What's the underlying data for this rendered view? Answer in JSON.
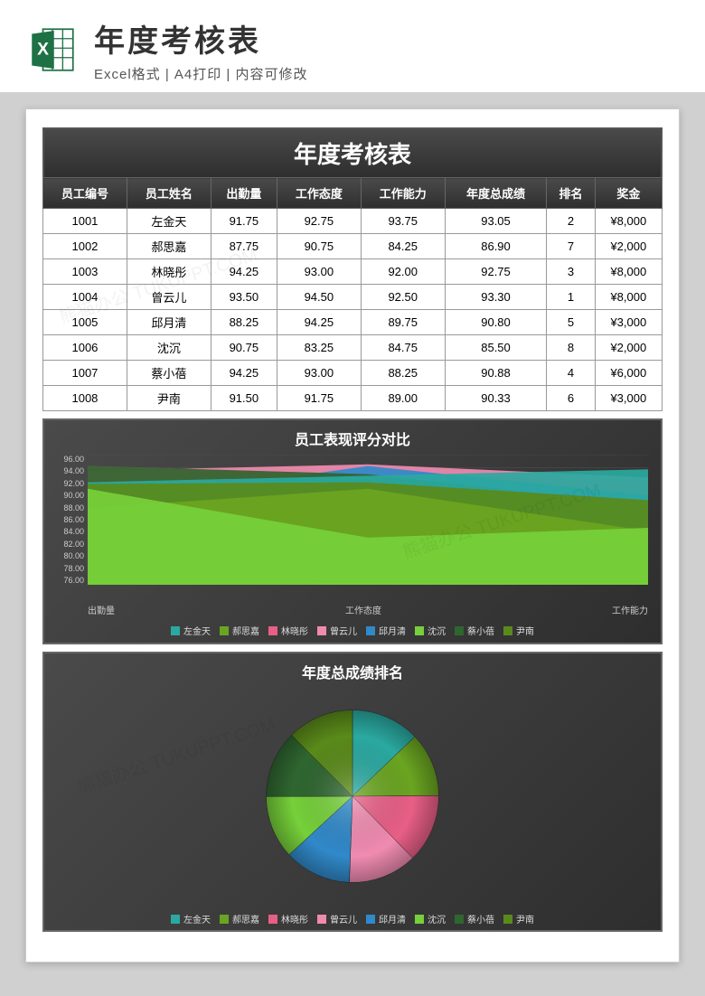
{
  "header": {
    "title": "年度考核表",
    "subtitle": "Excel格式 | A4打印 | 内容可修改"
  },
  "report_title": "年度考核表",
  "table": {
    "columns": [
      "员工编号",
      "员工姓名",
      "出勤量",
      "工作态度",
      "工作能力",
      "年度总成绩",
      "排名",
      "奖金"
    ],
    "rows": [
      [
        "1001",
        "左金天",
        "91.75",
        "92.75",
        "93.75",
        "93.05",
        "2",
        "¥8,000"
      ],
      [
        "1002",
        "郝思嘉",
        "87.75",
        "90.75",
        "84.25",
        "86.90",
        "7",
        "¥2,000"
      ],
      [
        "1003",
        "林晓彤",
        "94.25",
        "93.00",
        "92.00",
        "92.75",
        "3",
        "¥8,000"
      ],
      [
        "1004",
        "曾云儿",
        "93.50",
        "94.50",
        "92.50",
        "93.30",
        "1",
        "¥8,000"
      ],
      [
        "1005",
        "邱月清",
        "88.25",
        "94.25",
        "89.75",
        "90.80",
        "5",
        "¥3,000"
      ],
      [
        "1006",
        "沈沉",
        "90.75",
        "83.25",
        "84.75",
        "85.50",
        "8",
        "¥2,000"
      ],
      [
        "1007",
        "蔡小蓓",
        "94.25",
        "93.00",
        "88.25",
        "90.88",
        "4",
        "¥6,000"
      ],
      [
        "1008",
        "尹南",
        "91.50",
        "91.75",
        "89.00",
        "90.33",
        "6",
        "¥3,000"
      ]
    ]
  },
  "area_chart": {
    "title": "员工表现评分对比",
    "x_labels": [
      "出勤量",
      "工作态度",
      "工作能力"
    ],
    "y_min": 76,
    "y_max": 96,
    "y_step": 2,
    "y_ticks": [
      "96.00",
      "94.00",
      "92.00",
      "90.00",
      "88.00",
      "86.00",
      "84.00",
      "82.00",
      "80.00",
      "78.00",
      "76.00"
    ],
    "grid_color": "#555555",
    "series": [
      {
        "name": "左金天",
        "color": "#2aa9a0",
        "values": [
          91.75,
          92.75,
          93.75
        ]
      },
      {
        "name": "郝思嘉",
        "color": "#6aa521",
        "values": [
          87.75,
          90.75,
          84.25
        ]
      },
      {
        "name": "林晓彤",
        "color": "#e85f86",
        "values": [
          94.25,
          93.0,
          92.0
        ]
      },
      {
        "name": "曾云儿",
        "color": "#f08bb0",
        "values": [
          93.5,
          94.5,
          92.5
        ]
      },
      {
        "name": "邱月清",
        "color": "#3089c9",
        "values": [
          88.25,
          94.25,
          89.75
        ]
      },
      {
        "name": "沈沉",
        "color": "#76d03a",
        "values": [
          90.75,
          83.25,
          84.75
        ]
      },
      {
        "name": "蔡小蓓",
        "color": "#2f6630",
        "values": [
          94.25,
          93.0,
          88.25
        ]
      },
      {
        "name": "尹南",
        "color": "#5a8a1a",
        "values": [
          91.5,
          91.75,
          89.0
        ]
      }
    ]
  },
  "pie_chart": {
    "title": "年度总成绩排名",
    "slices": [
      {
        "name": "左金天",
        "color": "#2aa9a0",
        "value": 93.05
      },
      {
        "name": "郝思嘉",
        "color": "#6aa521",
        "value": 86.9
      },
      {
        "name": "林晓彤",
        "color": "#e85f86",
        "value": 92.75
      },
      {
        "name": "曾云儿",
        "color": "#f08bb0",
        "value": 93.3
      },
      {
        "name": "邱月清",
        "color": "#3089c9",
        "value": 90.8
      },
      {
        "name": "沈沉",
        "color": "#76d03a",
        "value": 85.5
      },
      {
        "name": "蔡小蓓",
        "color": "#2f6630",
        "value": 90.88
      },
      {
        "name": "尹南",
        "color": "#5a8a1a",
        "value": 90.33
      }
    ]
  },
  "watermark_text": "熊猫办公 TUKUPPT.COM"
}
